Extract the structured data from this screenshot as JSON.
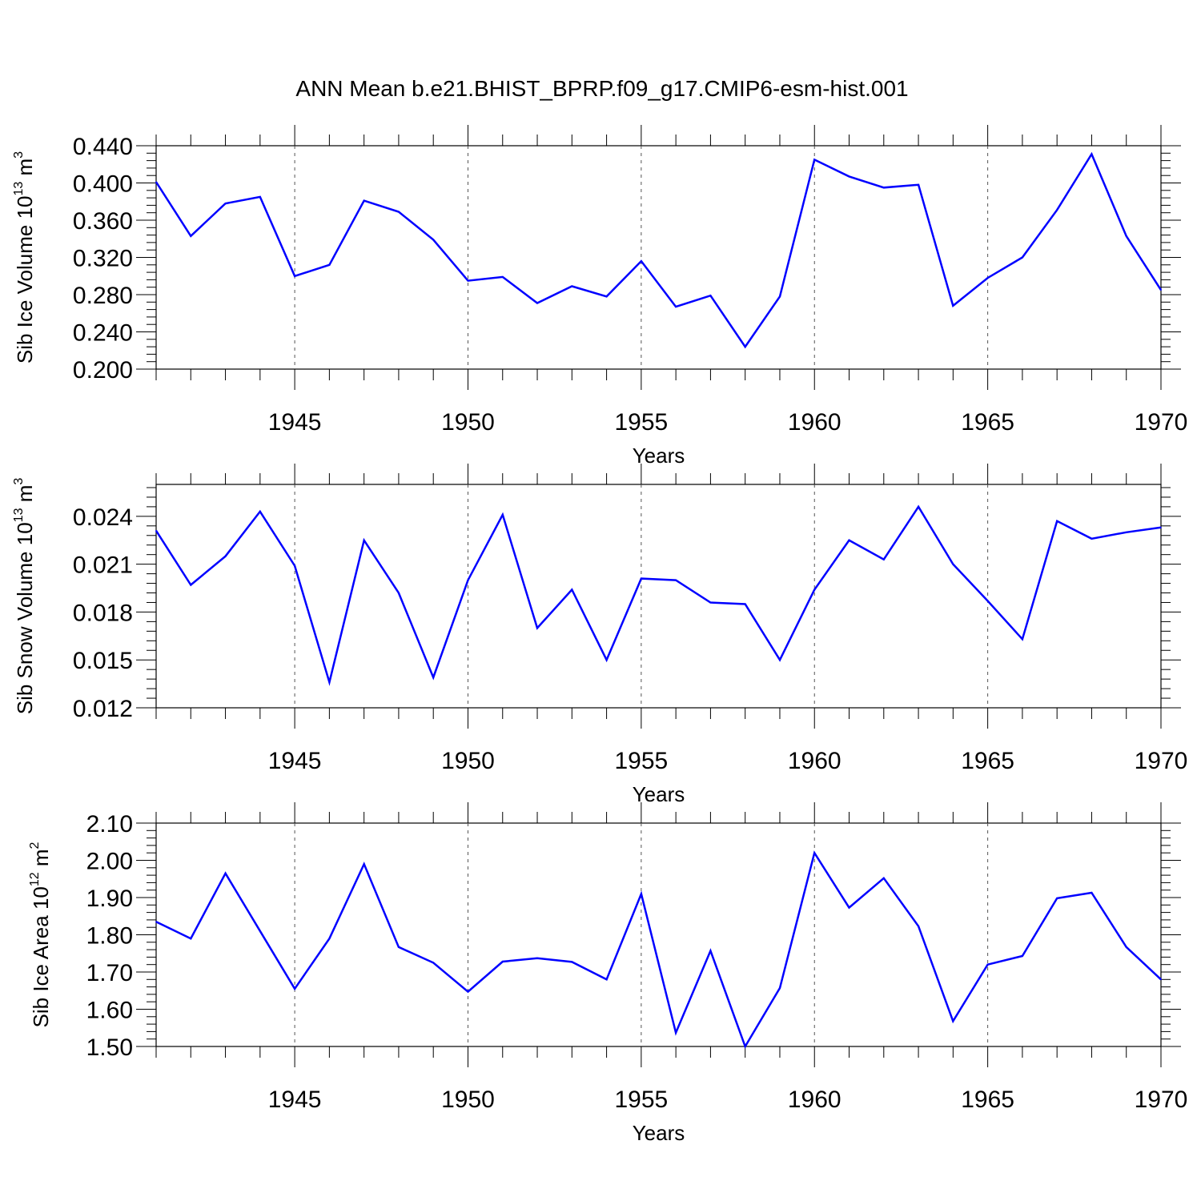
{
  "title": "ANN Mean b.e21.BHIST_BPRP.f09_g17.CMIP6-esm-hist.001",
  "colors": {
    "line": "#0000ff",
    "axes": "#000000",
    "grid": "#555555"
  },
  "chart_data": [
    {
      "type": "line",
      "ylabel": {
        "prefix": "Sib Ice Volume 10",
        "exp": "13",
        "unit": " m",
        "unit_exp": "3"
      },
      "xlabel": "Years",
      "xlim": [
        1941,
        1970
      ],
      "ylim": [
        0.2,
        0.44
      ],
      "yticks": [
        "0.200",
        "0.240",
        "0.280",
        "0.320",
        "0.360",
        "0.400",
        "0.440"
      ],
      "yticks_values": [
        0.2,
        0.24,
        0.28,
        0.32,
        0.36,
        0.4,
        0.44
      ],
      "xticks": [
        "1945",
        "1950",
        "1955",
        "1960",
        "1965",
        "1970"
      ],
      "xticks_values": [
        1945,
        1950,
        1955,
        1960,
        1965,
        1970
      ],
      "grid_x": [
        1945,
        1950,
        1955,
        1960,
        1965
      ],
      "series": [
        {
          "name": "Sib Ice Volume",
          "x": [
            1941,
            1942,
            1943,
            1944,
            1945,
            1946,
            1947,
            1948,
            1949,
            1950,
            1951,
            1952,
            1953,
            1954,
            1955,
            1956,
            1957,
            1958,
            1959,
            1960,
            1961,
            1962,
            1963,
            1964,
            1965,
            1966,
            1967,
            1968,
            1969,
            1970
          ],
          "values": [
            0.401,
            0.343,
            0.378,
            0.385,
            0.3,
            0.312,
            0.381,
            0.369,
            0.339,
            0.295,
            0.299,
            0.271,
            0.289,
            0.278,
            0.316,
            0.267,
            0.279,
            0.224,
            0.278,
            0.425,
            0.407,
            0.395,
            0.398,
            0.268,
            0.298,
            0.32,
            0.371,
            0.431,
            0.343,
            0.285
          ]
        }
      ]
    },
    {
      "type": "line",
      "ylabel": {
        "prefix": "Sib Snow Volume 10",
        "exp": "13",
        "unit": " m",
        "unit_exp": "3"
      },
      "xlabel": "Years",
      "xlim": [
        1941,
        1970
      ],
      "ylim": [
        0.012,
        0.026
      ],
      "yticks": [
        "0.012",
        "0.015",
        "0.018",
        "0.021",
        "0.024"
      ],
      "yticks_values": [
        0.012,
        0.015,
        0.018,
        0.021,
        0.024
      ],
      "xticks": [
        "1945",
        "1950",
        "1955",
        "1960",
        "1965",
        "1970"
      ],
      "xticks_values": [
        1945,
        1950,
        1955,
        1960,
        1965,
        1970
      ],
      "grid_x": [
        1945,
        1950,
        1955,
        1960,
        1965
      ],
      "series": [
        {
          "name": "Sib Snow Volume",
          "x": [
            1941,
            1942,
            1943,
            1944,
            1945,
            1946,
            1947,
            1948,
            1949,
            1950,
            1951,
            1952,
            1953,
            1954,
            1955,
            1956,
            1957,
            1958,
            1959,
            1960,
            1961,
            1962,
            1963,
            1964,
            1965,
            1966,
            1967,
            1968,
            1969,
            1970
          ],
          "values": [
            0.0231,
            0.0197,
            0.0215,
            0.0243,
            0.0209,
            0.0136,
            0.0225,
            0.0192,
            0.0139,
            0.02,
            0.0241,
            0.017,
            0.0194,
            0.015,
            0.0201,
            0.02,
            0.0186,
            0.0185,
            0.015,
            0.0194,
            0.0225,
            0.0213,
            0.0246,
            0.021,
            0.0187,
            0.0163,
            0.0237,
            0.0226,
            0.023,
            0.0233
          ]
        }
      ]
    },
    {
      "type": "line",
      "ylabel": {
        "prefix": "Sib Ice Area 10",
        "exp": "12",
        "unit": " m",
        "unit_exp": "2"
      },
      "xlabel": "Years",
      "xlim": [
        1941,
        1970
      ],
      "ylim": [
        1.5,
        2.1
      ],
      "yticks": [
        "1.50",
        "1.60",
        "1.70",
        "1.80",
        "1.90",
        "2.00",
        "2.10"
      ],
      "yticks_values": [
        1.5,
        1.6,
        1.7,
        1.8,
        1.9,
        2.0,
        2.1
      ],
      "xticks": [
        "1945",
        "1950",
        "1955",
        "1960",
        "1965",
        "1970"
      ],
      "xticks_values": [
        1945,
        1950,
        1955,
        1960,
        1965,
        1970
      ],
      "grid_x": [
        1945,
        1950,
        1955,
        1960,
        1965
      ],
      "series": [
        {
          "name": "Sib Ice Area",
          "x": [
            1941,
            1942,
            1943,
            1944,
            1945,
            1946,
            1947,
            1948,
            1949,
            1950,
            1951,
            1952,
            1953,
            1954,
            1955,
            1956,
            1957,
            1958,
            1959,
            1960,
            1961,
            1962,
            1963,
            1964,
            1965,
            1966,
            1967,
            1968,
            1969,
            1970
          ],
          "values": [
            1.835,
            1.79,
            1.965,
            1.81,
            1.655,
            1.79,
            1.99,
            1.767,
            1.725,
            1.647,
            1.728,
            1.737,
            1.727,
            1.68,
            1.91,
            1.537,
            1.757,
            1.5,
            1.657,
            2.02,
            1.873,
            1.952,
            1.823,
            1.568,
            1.72,
            1.743,
            1.898,
            1.913,
            1.767,
            1.68
          ]
        }
      ]
    }
  ]
}
